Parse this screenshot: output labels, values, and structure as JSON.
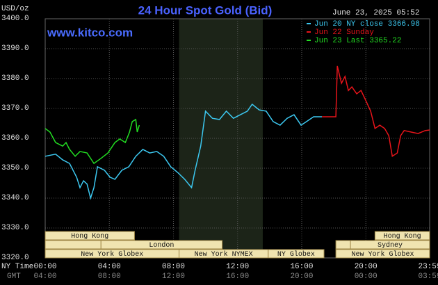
{
  "chart_data": {
    "type": "line",
    "title": "24 Hour Spot Gold (Bid)",
    "timestamp": "June 23, 2025 05:52",
    "y_axis_label": "USD/oz",
    "watermark": "www.kitco.com",
    "x_row_label": "NY Time",
    "x2_row_label": "GMT",
    "xlim": [
      0,
      23.98
    ],
    "xticks": [
      {
        "value": 0,
        "label": "00:00"
      },
      {
        "value": 4,
        "label": "04:00"
      },
      {
        "value": 8,
        "label": "08:00"
      },
      {
        "value": 12,
        "label": "12:00"
      },
      {
        "value": 16,
        "label": "16:00"
      },
      {
        "value": 20,
        "label": "20:00"
      },
      {
        "value": 23.98,
        "label": "23:59"
      }
    ],
    "gmt_labels": [
      "04:00",
      "08:00",
      "12:00",
      "16:00",
      "20:00",
      "00:00",
      "03:59"
    ],
    "ylim": [
      3320,
      3400
    ],
    "yticks": [
      {
        "value": 3320,
        "label": "3320.0"
      },
      {
        "value": 3330,
        "label": "3330.0"
      },
      {
        "value": 3340,
        "label": "3340.0"
      },
      {
        "value": 3350,
        "label": "3350.0"
      },
      {
        "value": 3360,
        "label": "3360.0"
      },
      {
        "value": 3370,
        "label": "3370.0"
      },
      {
        "value": 3380,
        "label": "3380.0"
      },
      {
        "value": 3390,
        "label": "3390.0"
      },
      {
        "value": 3400,
        "label": "3400.0"
      }
    ],
    "grid": true,
    "highlight": [
      8.35,
      13.57
    ],
    "series": [
      {
        "name": "Jun 20 NY close 3366.98",
        "color": "#3cc8f0",
        "x": [
          0,
          0.65,
          1.09,
          1.52,
          1.96,
          2.17,
          2.39,
          2.61,
          2.83,
          3.04,
          3.26,
          3.7,
          4.04,
          4.35,
          4.78,
          5.22,
          5.65,
          6.09,
          6.52,
          6.96,
          7.39,
          7.83,
          8.26,
          8.7,
          9.13,
          9.35,
          9.7,
          10.0,
          10.43,
          10.87,
          11.3,
          11.74,
          12.17,
          12.61,
          12.91,
          13.35,
          13.78,
          14.22,
          14.65,
          15.09,
          15.52,
          15.96,
          16.3,
          16.74,
          17.26
        ],
        "values": [
          3354.0,
          3354.7,
          3352.8,
          3351.6,
          3347.0,
          3343.5,
          3345.8,
          3344.7,
          3340.0,
          3343.5,
          3350.5,
          3349.3,
          3347.0,
          3346.3,
          3349.3,
          3350.5,
          3354.0,
          3356.3,
          3355.1,
          3355.6,
          3354.0,
          3350.5,
          3348.6,
          3346.3,
          3343.5,
          3349.3,
          3357.4,
          3369.1,
          3366.7,
          3366.3,
          3369.1,
          3366.7,
          3367.9,
          3369.1,
          3371.4,
          3369.5,
          3369.1,
          3365.6,
          3364.4,
          3366.7,
          3367.9,
          3364.4,
          3365.6,
          3367.2,
          3367.2
        ]
      },
      {
        "name": "Jun 22 Sunday",
        "color": "#e8141a",
        "x": [
          17.26,
          18.13,
          18.22,
          18.48,
          18.7,
          18.91,
          19.13,
          19.43,
          19.7,
          20.0,
          20.3,
          20.57,
          20.87,
          21.17,
          21.43,
          21.65,
          21.96,
          22.17,
          22.39,
          22.83,
          23.26,
          23.7,
          23.98
        ],
        "values": [
          3367.2,
          3367.2,
          3384.2,
          3378.4,
          3380.7,
          3376.0,
          3377.2,
          3374.9,
          3376.0,
          3372.6,
          3369.1,
          3363.3,
          3364.4,
          3363.3,
          3360.9,
          3354.0,
          3355.1,
          3360.9,
          3362.6,
          3362.1,
          3361.6,
          3362.6,
          3362.8
        ]
      },
      {
        "name": "Jun 23 Last 3365.22",
        "color": "#22dd22",
        "x": [
          0,
          0.3,
          0.65,
          1.09,
          1.3,
          1.52,
          1.87,
          2.17,
          2.61,
          3.04,
          3.48,
          3.91,
          4.35,
          4.65,
          5.0,
          5.26,
          5.43,
          5.65,
          5.74,
          5.87
        ],
        "values": [
          3363.3,
          3362.1,
          3358.6,
          3357.4,
          3358.6,
          3356.3,
          3354.0,
          3355.6,
          3355.1,
          3351.6,
          3353.3,
          3355.1,
          3358.6,
          3359.8,
          3358.6,
          3362.1,
          3365.6,
          3366.3,
          3362.1,
          3364.4
        ]
      }
    ],
    "sessions": [
      {
        "label": "Hong Kong",
        "row": 0,
        "start": 0,
        "end": 5.57
      },
      {
        "label": "Hong Kong",
        "row": 0,
        "start": 20.57,
        "end": 23.98
      },
      {
        "label": null,
        "row": 1,
        "start": 0,
        "end": 3.48
      },
      {
        "label": "London",
        "row": 1,
        "start": 3.48,
        "end": 11.04
      },
      {
        "label": null,
        "row": 1,
        "start": 18.13,
        "end": 19.04
      },
      {
        "label": "Sydney",
        "row": 1,
        "start": 19.04,
        "end": 23.98
      },
      {
        "label": "New York Globex",
        "row": 2,
        "start": 0,
        "end": 8.35
      },
      {
        "label": "New York NYMEX",
        "row": 2,
        "start": 8.35,
        "end": 13.91
      },
      {
        "label": "NY Globex",
        "row": 2,
        "start": 13.91,
        "end": 17.39
      },
      {
        "label": "New York Globex",
        "row": 2,
        "start": 18.13,
        "end": 23.98
      }
    ]
  }
}
